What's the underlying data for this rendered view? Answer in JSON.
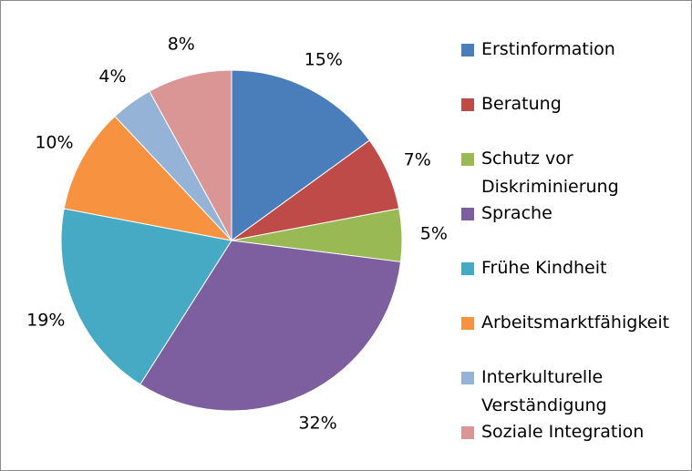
{
  "chart_data": {
    "type": "pie",
    "categories": [
      "Erstinformation",
      "Beratung",
      "Schutz vor Diskriminierung",
      "Sprache",
      "Frühe Kindheit",
      "Arbeitsmarktfähigkeit",
      "Interkulturelle Verständigung",
      "Soziale Integration"
    ],
    "values": [
      15,
      7,
      5,
      32,
      19,
      10,
      4,
      8
    ],
    "value_labels": [
      "15%",
      "7%",
      "5%",
      "32%",
      "19%",
      "10%",
      "4%",
      "8%"
    ],
    "colors": [
      "#4a7ebb",
      "#be4b48",
      "#98b954",
      "#7d5fa0",
      "#46aac5",
      "#f69240",
      "#95b3d7",
      "#d99694"
    ],
    "legend": "right"
  }
}
